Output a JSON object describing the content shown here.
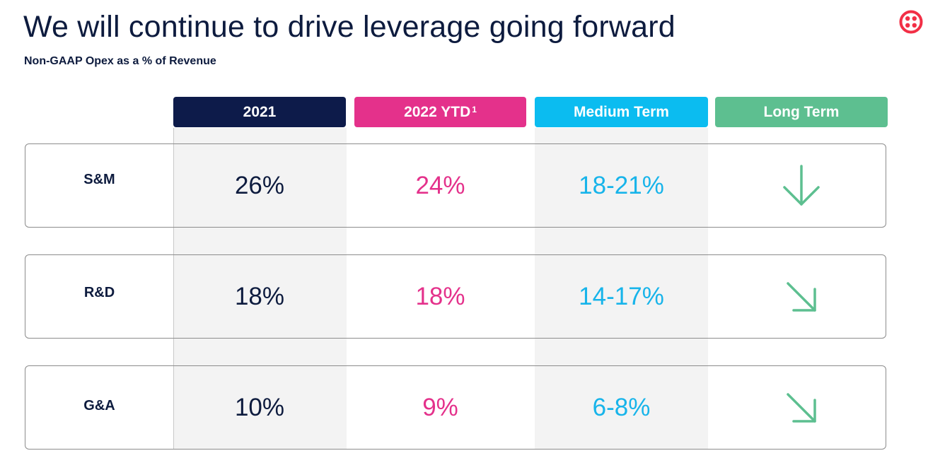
{
  "header": {
    "title": "We will continue to drive leverage going forward",
    "subtitle": "Non-GAAP Opex as a % of Revenue",
    "logo_icon": "twilio-logo-icon"
  },
  "columns": [
    {
      "label": "2021",
      "sup": "",
      "color": "#0d1b4a"
    },
    {
      "label": "2022 YTD",
      "sup": "1",
      "color": "#e4318b"
    },
    {
      "label": "Medium Term",
      "sup": "",
      "color": "#0bbcf0"
    },
    {
      "label": "Long Term",
      "sup": "",
      "color": "#5dbf90"
    }
  ],
  "value_colors": {
    "y2021": "#0d1b3e",
    "y2022": "#e4318b",
    "medium": "#17b4ea",
    "arrow": "#5dbf90"
  },
  "rows": [
    {
      "label": "S&M",
      "y2021": "26%",
      "y2022": "24%",
      "medium": "18-21%",
      "long_term_icon": "arrow-down-icon"
    },
    {
      "label": "R&D",
      "y2021": "18%",
      "y2022": "18%",
      "medium": "14-17%",
      "long_term_icon": "arrow-down-right-icon"
    },
    {
      "label": "G&A",
      "y2021": "10%",
      "y2022": "9%",
      "medium": "6-8%",
      "long_term_icon": "arrow-down-right-icon"
    }
  ]
}
